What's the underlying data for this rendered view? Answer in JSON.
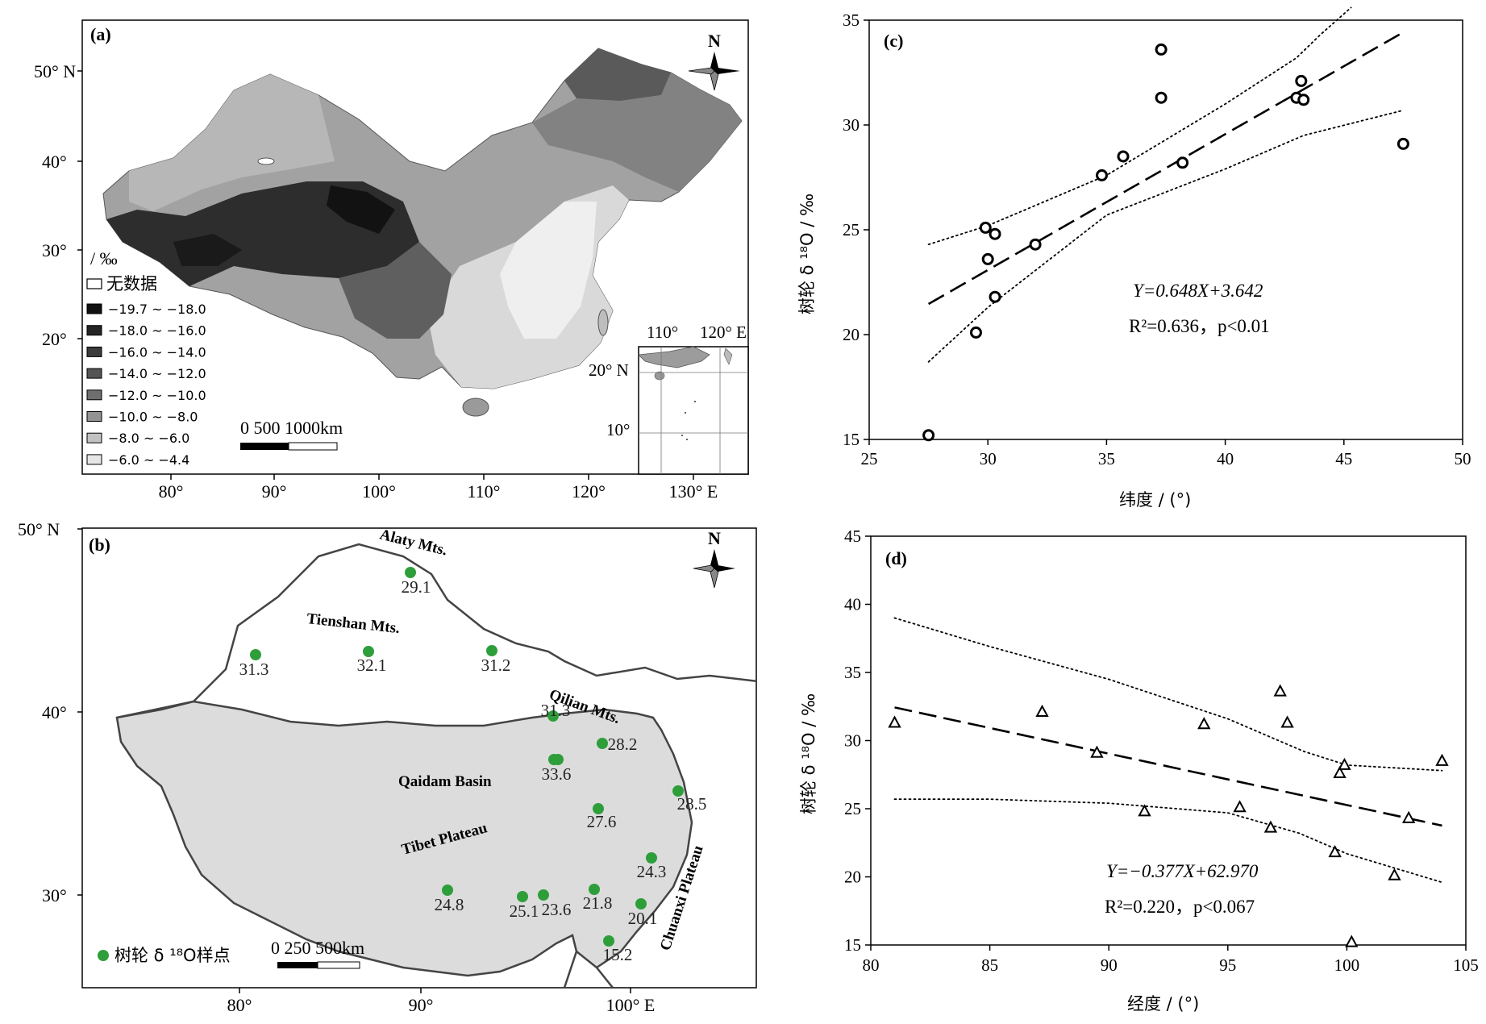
{
  "panel_a": {
    "label": "(a)",
    "north": "N",
    "lat_ticks": [
      "50° N",
      "40°",
      "30°",
      "20°"
    ],
    "lon_ticks": [
      "80°",
      "90°",
      "100°",
      "110°",
      "120°",
      "130° E"
    ],
    "legend_unit": "/ ‰",
    "legend_nodata": "无数据",
    "legend": [
      {
        "range": "−19.7 ~ −18.0",
        "color": "#111111"
      },
      {
        "range": "−18.0 ~ −16.0",
        "color": "#242424"
      },
      {
        "range": "−16.0 ~ −14.0",
        "color": "#3b3b3b"
      },
      {
        "range": "−14.0 ~ −12.0",
        "color": "#545454"
      },
      {
        "range": "−12.0 ~ −10.0",
        "color": "#6e6e6e"
      },
      {
        "range": "−10.0 ~ −8.0",
        "color": "#939393"
      },
      {
        "range": "−8.0 ~ −6.0",
        "color": "#c2c2c2"
      },
      {
        "range": "−6.0 ~ −4.4",
        "color": "#e6e6e6"
      }
    ],
    "scale_label": "0    500   1000km",
    "inset_lon": [
      "110°",
      "120° E"
    ],
    "inset_lat": [
      "20° N",
      "10°"
    ]
  },
  "panel_b": {
    "label": "(b)",
    "north": "N",
    "lat_ticks": [
      "50° N",
      "40°",
      "30°"
    ],
    "lon_ticks": [
      "80°",
      "90°",
      "100° E"
    ],
    "places": [
      "Alaty Mts.",
      "Tienshan Mts.",
      "Qilian Mts.",
      "Qaidam Basin",
      "Tibet Plateau",
      "Chuanxi Plateau"
    ],
    "sites": [
      "29.1",
      "31.3",
      "32.1",
      "31.2",
      "31.3",
      "33.6",
      "28.2",
      "28.5",
      "27.6",
      "24.3",
      "24.8",
      "25.1",
      "23.6",
      "21.8",
      "20.1",
      "15.2"
    ],
    "legend_label": "树轮 δ ¹⁸O样点",
    "scale_label": "0   250   500km",
    "site_color": "#2e9e3a"
  },
  "chart_data": [
    {
      "type": "scatter",
      "panel": "(c)",
      "xlabel": "纬度 / (°)",
      "ylabel": "树轮 δ ¹⁸O / ‰",
      "xlim": [
        25,
        50
      ],
      "ylim": [
        15,
        35
      ],
      "xticks": [
        "25",
        "30",
        "35",
        "40",
        "45",
        "50"
      ],
      "yticks": [
        "15",
        "20",
        "25",
        "30",
        "35"
      ],
      "marker": "circle",
      "x": [
        27.5,
        29.5,
        29.9,
        30.0,
        30.3,
        30.3,
        32.0,
        34.8,
        35.7,
        37.3,
        37.3,
        38.2,
        43.0,
        43.2,
        43.3,
        47.5
      ],
      "y": [
        15.2,
        20.1,
        25.1,
        23.6,
        24.8,
        21.8,
        24.3,
        27.6,
        28.5,
        33.6,
        31.3,
        28.2,
        31.3,
        32.1,
        31.2,
        29.1
      ],
      "fit": {
        "slope": 0.648,
        "intercept": 3.642,
        "x_range": [
          27.5,
          47.5
        ]
      },
      "upper_band": [
        [
          27.5,
          24.3
        ],
        [
          30,
          25.2
        ],
        [
          35,
          27.6
        ],
        [
          40,
          31.0
        ],
        [
          43,
          33.2
        ],
        [
          44,
          34.3
        ],
        [
          45.3,
          35.6
        ]
      ],
      "lower_band": [
        [
          27.5,
          18.7
        ],
        [
          30,
          21.3
        ],
        [
          35,
          25.7
        ],
        [
          40,
          27.9
        ],
        [
          43.3,
          29.5
        ],
        [
          47.5,
          30.7
        ]
      ],
      "equation": "Y=0.648X+3.642",
      "stats": "R²=0.636，p<0.01"
    },
    {
      "type": "scatter",
      "panel": "(d)",
      "xlabel": "经度 / (°)",
      "ylabel": "树轮 δ ¹⁸O / ‰",
      "xlim": [
        80,
        105
      ],
      "ylim": [
        15,
        45
      ],
      "xticks": [
        "80",
        "85",
        "90",
        "95",
        "100",
        "105"
      ],
      "yticks": [
        "15",
        "20",
        "25",
        "30",
        "35",
        "40",
        "45"
      ],
      "marker": "triangle",
      "x": [
        81.0,
        87.2,
        89.5,
        91.5,
        94.0,
        95.5,
        96.8,
        97.2,
        97.5,
        99.5,
        99.7,
        99.9,
        100.2,
        102.0,
        102.6,
        104.0
      ],
      "y": [
        31.3,
        32.1,
        29.1,
        24.8,
        31.2,
        25.1,
        23.6,
        33.6,
        31.3,
        21.8,
        27.6,
        28.2,
        15.2,
        20.1,
        24.3,
        28.5
      ],
      "fit": {
        "slope": -0.377,
        "intercept": 62.97,
        "x_range": [
          81,
          104
        ]
      },
      "upper_band": [
        [
          81,
          39.0
        ],
        [
          85,
          36.9
        ],
        [
          90,
          34.5
        ],
        [
          95,
          31.6
        ],
        [
          98.2,
          29.2
        ],
        [
          100,
          28.2
        ],
        [
          104,
          27.8
        ]
      ],
      "lower_band": [
        [
          81,
          25.7
        ],
        [
          85,
          25.7
        ],
        [
          90,
          25.4
        ],
        [
          95,
          24.7
        ],
        [
          98,
          23.2
        ],
        [
          100,
          21.7
        ],
        [
          104,
          19.6
        ]
      ],
      "equation": "Y=−0.377X+62.970",
      "stats": "R²=0.220，p<0.067"
    }
  ]
}
